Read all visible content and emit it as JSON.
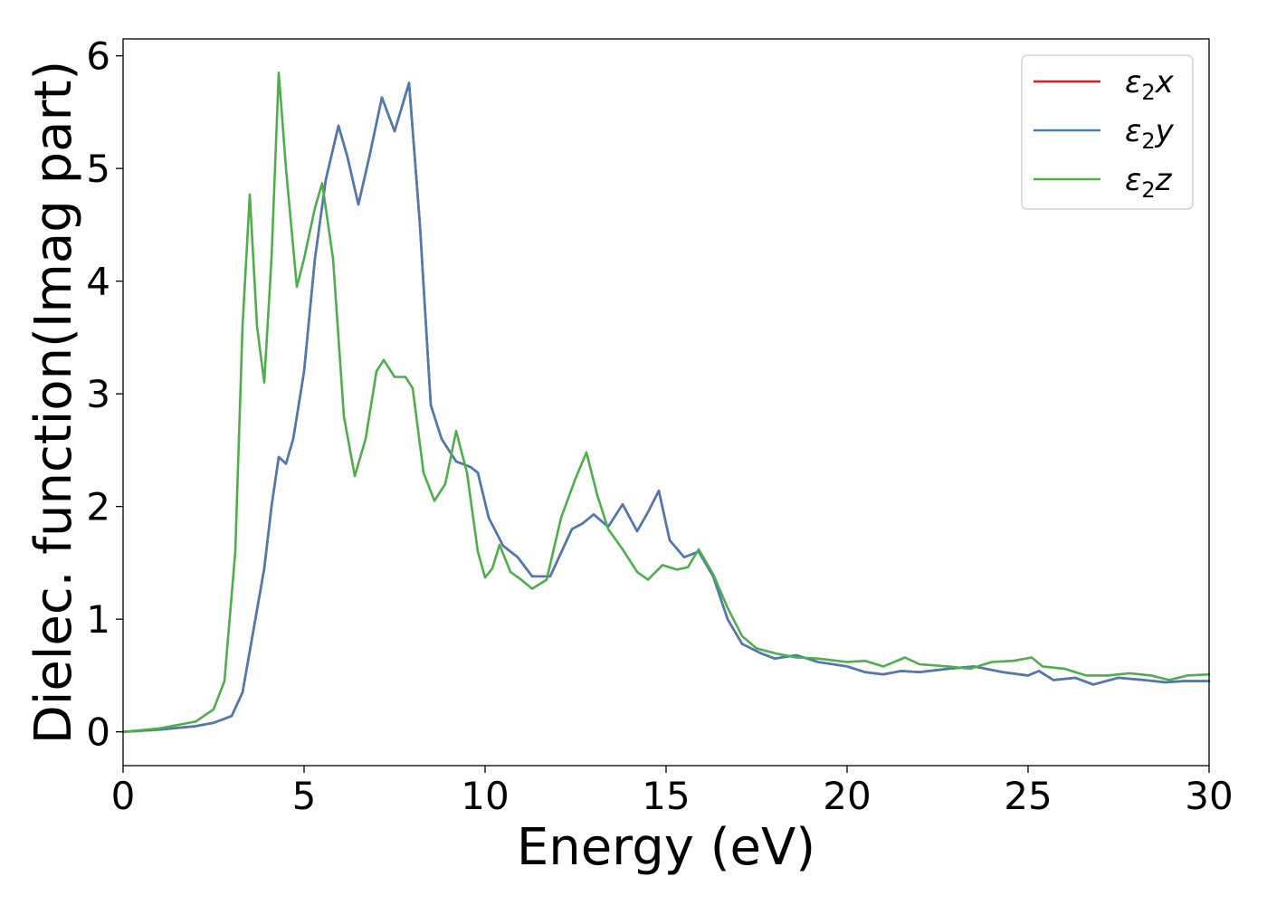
{
  "chart_data": {
    "type": "line",
    "xlabel": "Energy (eV)",
    "ylabel": "Dielec. function(Imag part)",
    "xlim": [
      0,
      30
    ],
    "ylim": [
      -0.3,
      6.15
    ],
    "xticks": [
      0,
      5,
      10,
      15,
      20,
      25,
      30
    ],
    "xtick_labels": [
      "0",
      "5",
      "10",
      "15",
      "20",
      "25",
      "30"
    ],
    "yticks": [
      0,
      1,
      2,
      3,
      4,
      5,
      6
    ],
    "ytick_labels": [
      "0",
      "1",
      "2",
      "3",
      "4",
      "5",
      "6"
    ],
    "grid": false,
    "legend_position": "top-right",
    "series": [
      {
        "name": "ε2x",
        "legend_base": "ε",
        "legend_sub": "2",
        "legend_tail": "x",
        "color": "#e41a1c",
        "points": [
          [
            0,
            0
          ],
          [
            1,
            0.02
          ],
          [
            2,
            0.05
          ],
          [
            2.5,
            0.08
          ],
          [
            3,
            0.14
          ],
          [
            3.3,
            0.35
          ],
          [
            3.6,
            0.9
          ],
          [
            3.9,
            1.45
          ],
          [
            4.1,
            2.0
          ],
          [
            4.3,
            2.44
          ],
          [
            4.5,
            2.38
          ],
          [
            4.7,
            2.6
          ],
          [
            5.0,
            3.2
          ],
          [
            5.3,
            4.2
          ],
          [
            5.6,
            4.9
          ],
          [
            5.95,
            5.38
          ],
          [
            6.2,
            5.1
          ],
          [
            6.5,
            4.68
          ],
          [
            6.8,
            5.1
          ],
          [
            7.15,
            5.63
          ],
          [
            7.5,
            5.33
          ],
          [
            7.9,
            5.76
          ],
          [
            8.2,
            4.5
          ],
          [
            8.5,
            2.9
          ],
          [
            8.8,
            2.6
          ],
          [
            9.2,
            2.4
          ],
          [
            9.6,
            2.35
          ],
          [
            9.8,
            2.3
          ],
          [
            10.1,
            1.9
          ],
          [
            10.5,
            1.65
          ],
          [
            10.9,
            1.55
          ],
          [
            11.3,
            1.38
          ],
          [
            11.8,
            1.38
          ],
          [
            12.4,
            1.8
          ],
          [
            12.7,
            1.85
          ],
          [
            13.0,
            1.93
          ],
          [
            13.4,
            1.82
          ],
          [
            13.8,
            2.02
          ],
          [
            14.2,
            1.78
          ],
          [
            14.5,
            1.95
          ],
          [
            14.8,
            2.14
          ],
          [
            15.1,
            1.7
          ],
          [
            15.5,
            1.55
          ],
          [
            15.9,
            1.6
          ],
          [
            16.3,
            1.38
          ],
          [
            16.7,
            1.0
          ],
          [
            17.1,
            0.78
          ],
          [
            17.6,
            0.7
          ],
          [
            18.0,
            0.65
          ],
          [
            18.6,
            0.68
          ],
          [
            19.2,
            0.62
          ],
          [
            20.0,
            0.58
          ],
          [
            20.5,
            0.53
          ],
          [
            21.0,
            0.51
          ],
          [
            21.5,
            0.54
          ],
          [
            22.0,
            0.53
          ],
          [
            22.8,
            0.56
          ],
          [
            23.5,
            0.58
          ],
          [
            24.3,
            0.53
          ],
          [
            25.0,
            0.5
          ],
          [
            25.3,
            0.54
          ],
          [
            25.7,
            0.46
          ],
          [
            26.3,
            0.48
          ],
          [
            26.8,
            0.42
          ],
          [
            27.5,
            0.48
          ],
          [
            28.2,
            0.46
          ],
          [
            28.8,
            0.44
          ],
          [
            29.3,
            0.45
          ],
          [
            30.0,
            0.45
          ]
        ]
      },
      {
        "name": "ε2y",
        "legend_base": "ε",
        "legend_sub": "2",
        "legend_tail": "y",
        "color": "#4a7bb4",
        "points": [
          [
            0,
            0
          ],
          [
            1,
            0.02
          ],
          [
            2,
            0.05
          ],
          [
            2.5,
            0.08
          ],
          [
            3,
            0.14
          ],
          [
            3.3,
            0.35
          ],
          [
            3.6,
            0.9
          ],
          [
            3.9,
            1.45
          ],
          [
            4.1,
            2.0
          ],
          [
            4.3,
            2.44
          ],
          [
            4.5,
            2.38
          ],
          [
            4.7,
            2.6
          ],
          [
            5.0,
            3.2
          ],
          [
            5.3,
            4.2
          ],
          [
            5.6,
            4.9
          ],
          [
            5.95,
            5.38
          ],
          [
            6.2,
            5.1
          ],
          [
            6.5,
            4.68
          ],
          [
            6.8,
            5.1
          ],
          [
            7.15,
            5.63
          ],
          [
            7.5,
            5.33
          ],
          [
            7.9,
            5.76
          ],
          [
            8.2,
            4.5
          ],
          [
            8.5,
            2.9
          ],
          [
            8.8,
            2.6
          ],
          [
            9.2,
            2.4
          ],
          [
            9.6,
            2.35
          ],
          [
            9.8,
            2.3
          ],
          [
            10.1,
            1.9
          ],
          [
            10.5,
            1.65
          ],
          [
            10.9,
            1.55
          ],
          [
            11.3,
            1.38
          ],
          [
            11.8,
            1.38
          ],
          [
            12.4,
            1.8
          ],
          [
            12.7,
            1.85
          ],
          [
            13.0,
            1.93
          ],
          [
            13.4,
            1.82
          ],
          [
            13.8,
            2.02
          ],
          [
            14.2,
            1.78
          ],
          [
            14.5,
            1.95
          ],
          [
            14.8,
            2.14
          ],
          [
            15.1,
            1.7
          ],
          [
            15.5,
            1.55
          ],
          [
            15.9,
            1.6
          ],
          [
            16.3,
            1.38
          ],
          [
            16.7,
            1.0
          ],
          [
            17.1,
            0.78
          ],
          [
            17.6,
            0.7
          ],
          [
            18.0,
            0.65
          ],
          [
            18.6,
            0.68
          ],
          [
            19.2,
            0.62
          ],
          [
            20.0,
            0.58
          ],
          [
            20.5,
            0.53
          ],
          [
            21.0,
            0.51
          ],
          [
            21.5,
            0.54
          ],
          [
            22.0,
            0.53
          ],
          [
            22.8,
            0.56
          ],
          [
            23.5,
            0.58
          ],
          [
            24.3,
            0.53
          ],
          [
            25.0,
            0.5
          ],
          [
            25.3,
            0.54
          ],
          [
            25.7,
            0.46
          ],
          [
            26.3,
            0.48
          ],
          [
            26.8,
            0.42
          ],
          [
            27.5,
            0.48
          ],
          [
            28.2,
            0.46
          ],
          [
            28.8,
            0.44
          ],
          [
            29.3,
            0.45
          ],
          [
            30.0,
            0.45
          ]
        ]
      },
      {
        "name": "ε2z",
        "legend_base": "ε",
        "legend_sub": "2",
        "legend_tail": "z",
        "color": "#4daf4a",
        "points": [
          [
            0,
            0
          ],
          [
            1,
            0.03
          ],
          [
            2,
            0.09
          ],
          [
            2.5,
            0.2
          ],
          [
            2.8,
            0.45
          ],
          [
            3.1,
            1.6
          ],
          [
            3.3,
            3.6
          ],
          [
            3.5,
            4.77
          ],
          [
            3.7,
            3.6
          ],
          [
            3.9,
            3.1
          ],
          [
            4.1,
            4.2
          ],
          [
            4.3,
            5.85
          ],
          [
            4.5,
            5.0
          ],
          [
            4.8,
            3.95
          ],
          [
            5.0,
            4.2
          ],
          [
            5.3,
            4.65
          ],
          [
            5.5,
            4.87
          ],
          [
            5.8,
            4.2
          ],
          [
            6.1,
            2.8
          ],
          [
            6.4,
            2.27
          ],
          [
            6.7,
            2.6
          ],
          [
            7.0,
            3.2
          ],
          [
            7.2,
            3.3
          ],
          [
            7.5,
            3.15
          ],
          [
            7.8,
            3.15
          ],
          [
            8.0,
            3.05
          ],
          [
            8.3,
            2.3
          ],
          [
            8.6,
            2.05
          ],
          [
            8.9,
            2.2
          ],
          [
            9.2,
            2.67
          ],
          [
            9.5,
            2.3
          ],
          [
            9.8,
            1.6
          ],
          [
            10.0,
            1.37
          ],
          [
            10.2,
            1.45
          ],
          [
            10.4,
            1.66
          ],
          [
            10.7,
            1.42
          ],
          [
            11.0,
            1.35
          ],
          [
            11.3,
            1.27
          ],
          [
            11.7,
            1.35
          ],
          [
            12.1,
            1.9
          ],
          [
            12.5,
            2.25
          ],
          [
            12.8,
            2.48
          ],
          [
            13.1,
            2.1
          ],
          [
            13.4,
            1.8
          ],
          [
            13.8,
            1.62
          ],
          [
            14.2,
            1.42
          ],
          [
            14.5,
            1.35
          ],
          [
            14.9,
            1.48
          ],
          [
            15.3,
            1.44
          ],
          [
            15.6,
            1.46
          ],
          [
            15.9,
            1.62
          ],
          [
            16.3,
            1.4
          ],
          [
            16.7,
            1.1
          ],
          [
            17.1,
            0.85
          ],
          [
            17.5,
            0.74
          ],
          [
            18.1,
            0.69
          ],
          [
            18.6,
            0.66
          ],
          [
            19.2,
            0.65
          ],
          [
            20.0,
            0.62
          ],
          [
            20.5,
            0.63
          ],
          [
            21.0,
            0.58
          ],
          [
            21.6,
            0.66
          ],
          [
            22.0,
            0.6
          ],
          [
            22.8,
            0.58
          ],
          [
            23.4,
            0.56
          ],
          [
            24.0,
            0.62
          ],
          [
            24.6,
            0.63
          ],
          [
            25.1,
            0.66
          ],
          [
            25.4,
            0.58
          ],
          [
            26.0,
            0.56
          ],
          [
            26.6,
            0.5
          ],
          [
            27.2,
            0.5
          ],
          [
            27.8,
            0.52
          ],
          [
            28.4,
            0.5
          ],
          [
            28.9,
            0.46
          ],
          [
            29.4,
            0.5
          ],
          [
            30.0,
            0.51
          ]
        ]
      }
    ]
  }
}
